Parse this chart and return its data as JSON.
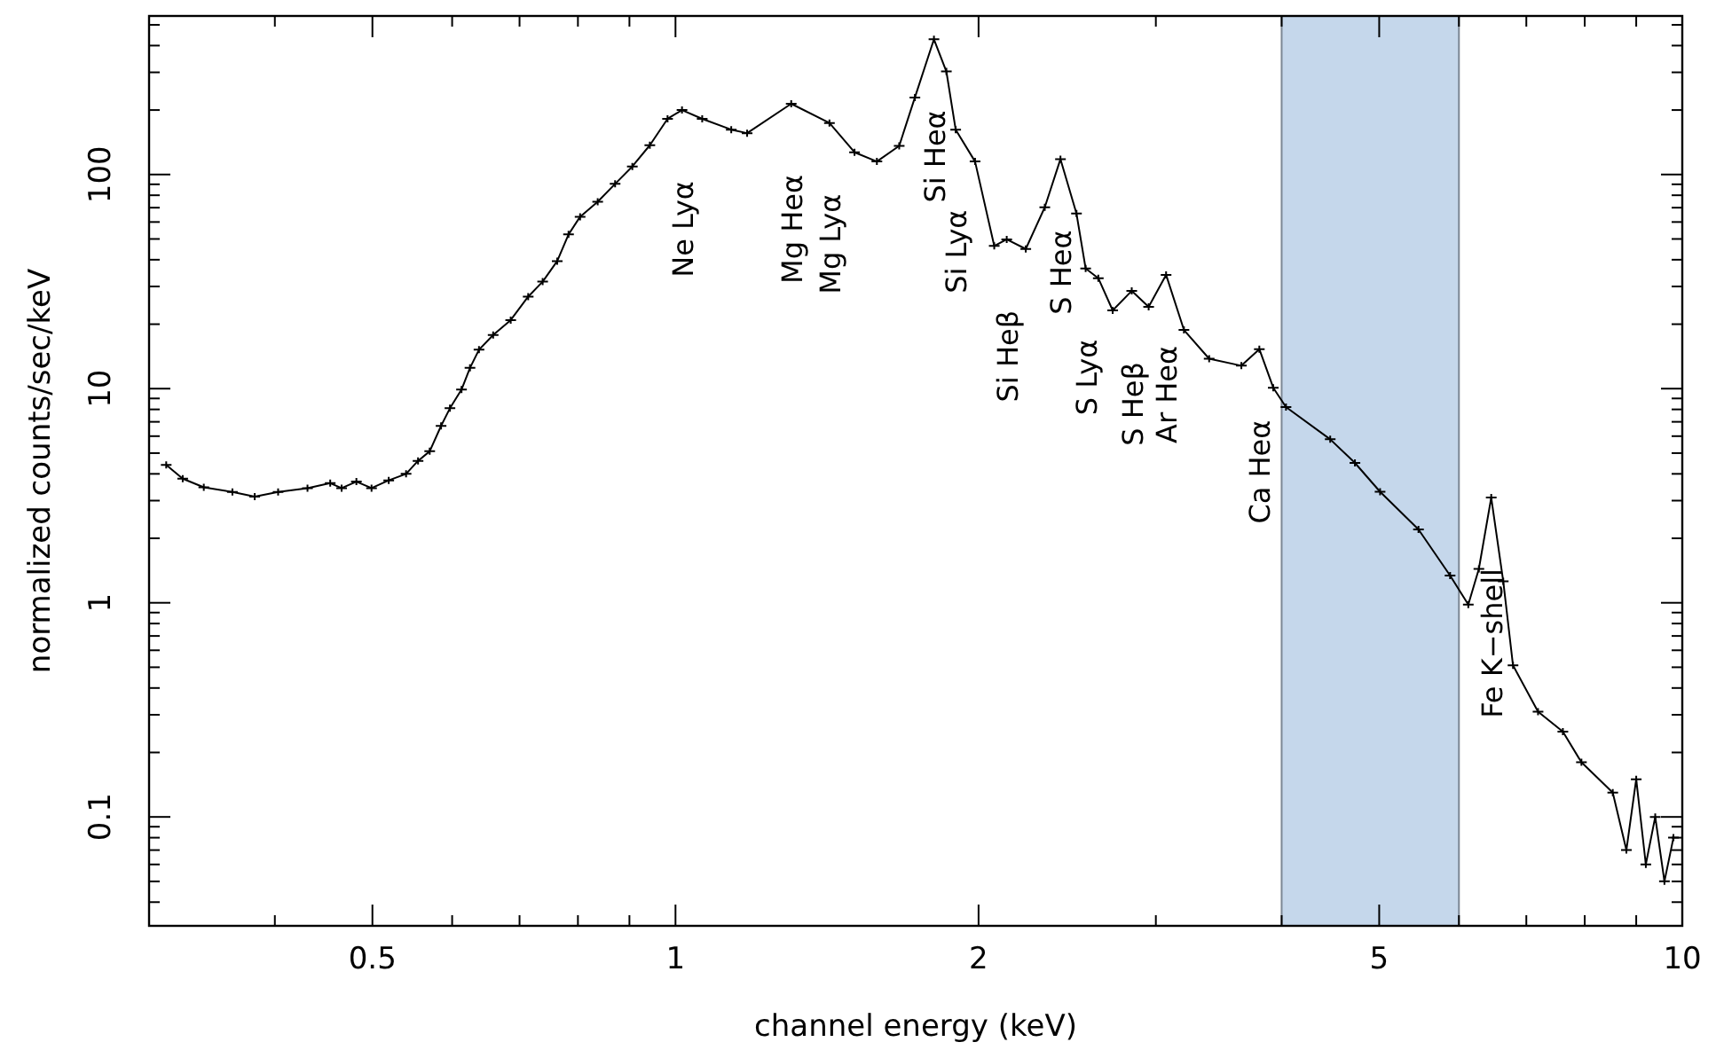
{
  "chart_data": {
    "type": "line",
    "xlabel": "channel energy (keV)",
    "ylabel": "normalized counts/sec/keV",
    "log": "xy",
    "grid": false,
    "marker": "cross",
    "line_style": "solid",
    "xlim": [
      0.3,
      10
    ],
    "ylim": [
      0.031,
      550
    ],
    "xticks": [
      {
        "value": 0.3,
        "label": null
      },
      {
        "value": 0.4,
        "label": null
      },
      0.5,
      {
        "value": 0.6,
        "label": null
      },
      {
        "value": 0.7,
        "label": null
      },
      {
        "value": 0.8,
        "label": null
      },
      {
        "value": 0.9,
        "label": null
      },
      1,
      2,
      {
        "value": 3,
        "label": null
      },
      {
        "value": 4,
        "label": null
      },
      5,
      {
        "value": 6,
        "label": null
      },
      {
        "value": 7,
        "label": null
      },
      {
        "value": 8,
        "label": null
      },
      {
        "value": 9,
        "label": null
      },
      10
    ],
    "yticks": [
      {
        "value": 0.04,
        "label": null
      },
      {
        "value": 0.05,
        "label": null
      },
      {
        "value": 0.06,
        "label": null
      },
      {
        "value": 0.07,
        "label": null
      },
      {
        "value": 0.08,
        "label": null
      },
      {
        "value": 0.09,
        "label": null
      },
      0.1,
      {
        "value": 0.2,
        "label": null
      },
      {
        "value": 0.3,
        "label": null
      },
      {
        "value": 0.4,
        "label": null
      },
      {
        "value": 0.5,
        "label": null
      },
      {
        "value": 0.6,
        "label": null
      },
      {
        "value": 0.7,
        "label": null
      },
      {
        "value": 0.8,
        "label": null
      },
      {
        "value": 0.9,
        "label": null
      },
      1,
      {
        "value": 2,
        "label": null
      },
      {
        "value": 3,
        "label": null
      },
      {
        "value": 4,
        "label": null
      },
      {
        "value": 5,
        "label": null
      },
      {
        "value": 6,
        "label": null
      },
      {
        "value": 7,
        "label": null
      },
      {
        "value": 8,
        "label": null
      },
      {
        "value": 9,
        "label": null
      },
      10,
      {
        "value": 20,
        "label": null
      },
      {
        "value": 30,
        "label": null
      },
      {
        "value": 40,
        "label": null
      },
      {
        "value": 50,
        "label": null
      },
      {
        "value": 60,
        "label": null
      },
      {
        "value": 70,
        "label": null
      },
      {
        "value": 80,
        "label": null
      },
      {
        "value": 90,
        "label": null
      },
      100,
      {
        "value": 200,
        "label": null
      },
      {
        "value": 300,
        "label": null
      },
      {
        "value": 400,
        "label": null
      },
      {
        "value": 500,
        "label": null
      }
    ],
    "x": [
      0.312,
      0.324,
      0.34,
      0.363,
      0.382,
      0.403,
      0.431,
      0.454,
      0.466,
      0.482,
      0.499,
      0.519,
      0.54,
      0.555,
      0.57,
      0.585,
      0.597,
      0.613,
      0.625,
      0.638,
      0.659,
      0.686,
      0.714,
      0.738,
      0.763,
      0.783,
      0.804,
      0.837,
      0.871,
      0.906,
      0.943,
      0.982,
      1.015,
      1.063,
      1.136,
      1.178,
      1.303,
      1.422,
      1.506,
      1.585,
      1.668,
      1.729,
      1.806,
      1.858,
      1.898,
      1.984,
      2.073,
      2.133,
      2.228,
      2.327,
      2.412,
      2.502,
      2.555,
      2.63,
      2.718,
      2.839,
      2.951,
      3.071,
      3.199,
      3.389,
      3.648,
      3.801,
      3.924,
      4.04,
      4.47,
      4.73,
      5.01,
      5.47,
      5.88,
      6.13,
      6.28,
      6.46,
      6.64,
      6.79,
      7.19,
      7.61,
      7.94,
      8.53,
      8.8,
      9.0,
      9.2,
      9.4,
      9.6,
      9.8
    ],
    "series": [
      {
        "color": "#000000",
        "values": [
          4.4,
          3.8,
          3.46,
          3.29,
          3.13,
          3.29,
          3.43,
          3.62,
          3.43,
          3.68,
          3.43,
          3.73,
          4.0,
          4.6,
          5.1,
          6.7,
          8.1,
          9.9,
          12.5,
          15.2,
          17.8,
          20.9,
          26.9,
          31.6,
          39.4,
          52.5,
          63.5,
          74.6,
          90.4,
          109,
          137,
          182,
          200,
          182,
          162,
          156,
          214,
          174,
          127,
          115,
          136,
          229,
          428,
          303,
          162,
          115,
          46.4,
          49.8,
          44.9,
          70.3,
          118,
          65.7,
          36.4,
          32.8,
          23.2,
          28.6,
          24.1,
          34.0,
          18.8,
          13.8,
          12.8,
          15.3,
          10.1,
          8.2,
          5.8,
          4.5,
          3.3,
          2.2,
          1.34,
          0.98,
          1.44,
          3.1,
          1.26,
          0.51,
          0.31,
          0.25,
          0.18,
          0.13,
          0.07,
          0.15,
          0.06,
          0.1,
          0.05,
          0.08
        ]
      }
    ],
    "bands": [
      {
        "axis": "x",
        "from": 4,
        "to": 6,
        "color": "#c5d7eb"
      }
    ],
    "annotations": [
      {
        "text": "Ne Lyα",
        "x": 1.015,
        "y": 200
      },
      {
        "text": "Mg Heα",
        "x": 1.303,
        "y": 214
      },
      {
        "text": "Mg Lyα",
        "x": 1.422,
        "y": 174
      },
      {
        "text": "Si Heα",
        "x": 1.806,
        "y": 428
      },
      {
        "text": "Si Lyα",
        "x": 1.898,
        "y": 162
      },
      {
        "text": "Si Heβ",
        "x": 2.133,
        "y": 49.8
      },
      {
        "text": "S Heα",
        "x": 2.412,
        "y": 118
      },
      {
        "text": "S Lyα",
        "x": 2.555,
        "y": 36.4
      },
      {
        "text": "S Heβ",
        "x": 2.839,
        "y": 28.6
      },
      {
        "text": "Ar Heα",
        "x": 3.071,
        "y": 34.0
      },
      {
        "text": "Ca Heα",
        "x": 3.801,
        "y": 15.3
      },
      {
        "text": "Fe K−shell",
        "x": 6.46,
        "y": 3.1
      }
    ]
  }
}
